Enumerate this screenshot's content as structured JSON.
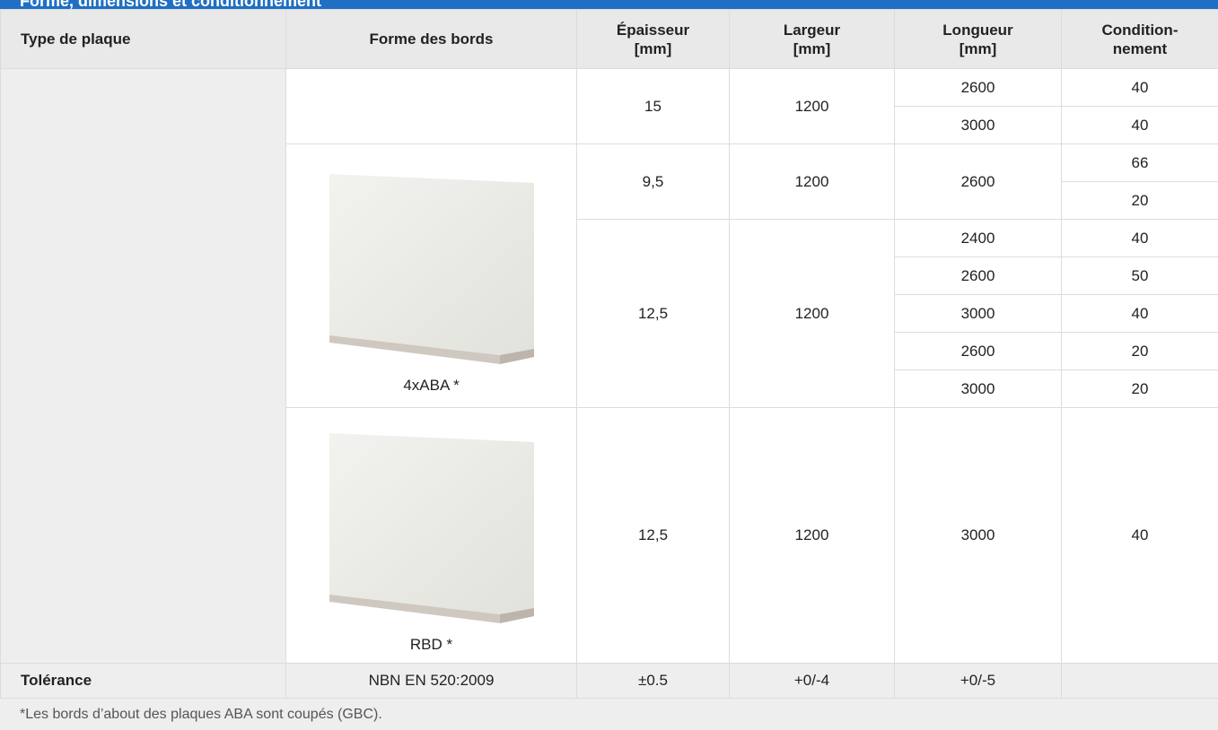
{
  "header": {
    "title": "Forme, dimensions et conditionnement"
  },
  "table": {
    "columns": [
      "Type de plaque",
      "Forme des bords",
      "Épaisseur\n[mm]",
      "Largeur\n[mm]",
      "Longueur\n[mm]",
      "Condition-\nnement"
    ],
    "sections": [
      {
        "blocks": [
          {
            "thickness": "15",
            "width": "1200",
            "lengths": [
              {
                "length": "2600",
                "packs": [
                  "40"
                ]
              },
              {
                "length": "3000",
                "packs": [
                  "40"
                ]
              }
            ]
          }
        ]
      },
      {
        "edge": "4xABA *",
        "blocks": [
          {
            "thickness": "9,5",
            "width": "1200",
            "lengths": [
              {
                "length": "2600",
                "packs": [
                  "66",
                  "20"
                ]
              }
            ]
          },
          {
            "thickness": "12,5",
            "width": "1200",
            "lengths": [
              {
                "length": "2400",
                "packs": [
                  "40"
                ]
              },
              {
                "length": "2600",
                "packs": [
                  "50"
                ]
              },
              {
                "length": "3000",
                "packs": [
                  "40"
                ]
              },
              {
                "length": "2600",
                "packs": [
                  "20"
                ]
              },
              {
                "length": "3000",
                "packs": [
                  "20"
                ]
              }
            ]
          }
        ]
      },
      {
        "edge": "RBD *",
        "blocks": [
          {
            "thickness": "12,5",
            "width": "1200",
            "lengths": [
              {
                "length": "3000",
                "packs": [
                  "40"
                ]
              }
            ]
          }
        ]
      }
    ],
    "tolerance": {
      "label": "Tolérance",
      "values": [
        "NBN EN 520:2009",
        "±0.5",
        "+0/-4",
        "+0/-5"
      ]
    },
    "footnote": "*Les bords d’about des plaques ABA sont coupés (GBC)."
  }
}
